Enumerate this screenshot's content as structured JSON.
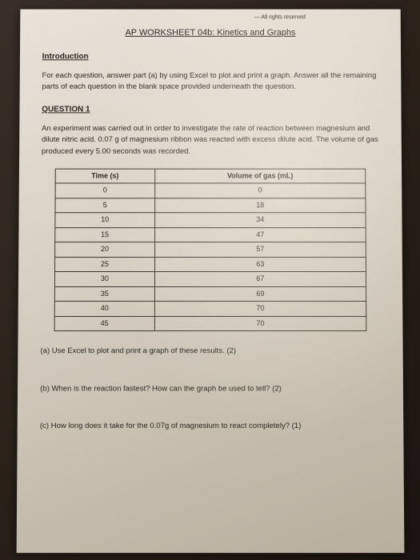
{
  "header_small": "— All rights reserved",
  "title": "AP WORKSHEET 04b: Kinetics and Graphs",
  "intro_heading": "Introduction",
  "intro_text": "For each question, answer part (a) by using Excel to plot and print a graph. Answer all the remaining parts of each question in the blank space provided underneath the question.",
  "q1_heading": "QUESTION 1",
  "q1_text": "An experiment was carried out in order to investigate the rate of reaction between magnesium and dilute nitric acid. 0.07 g of magnesium ribbon was reacted with excess dilute acid. The volume of gas produced every 5.00 seconds was recorded.",
  "table": {
    "col1": "Time (s)",
    "col2": "Volume of gas (mL)",
    "rows": [
      [
        "0",
        "0"
      ],
      [
        "5",
        "18"
      ],
      [
        "10",
        "34"
      ],
      [
        "15",
        "47"
      ],
      [
        "20",
        "57"
      ],
      [
        "25",
        "63"
      ],
      [
        "30",
        "67"
      ],
      [
        "35",
        "69"
      ],
      [
        "40",
        "70"
      ],
      [
        "45",
        "70"
      ]
    ]
  },
  "part_a": "(a)  Use Excel to plot and print a graph of these results. (2)",
  "part_b": "(b)  When is the reaction fastest? How can the graph be used to tell? (2)",
  "part_c": "(c)  How long does it take for the 0.07g of magnesium to react completely? (1)"
}
